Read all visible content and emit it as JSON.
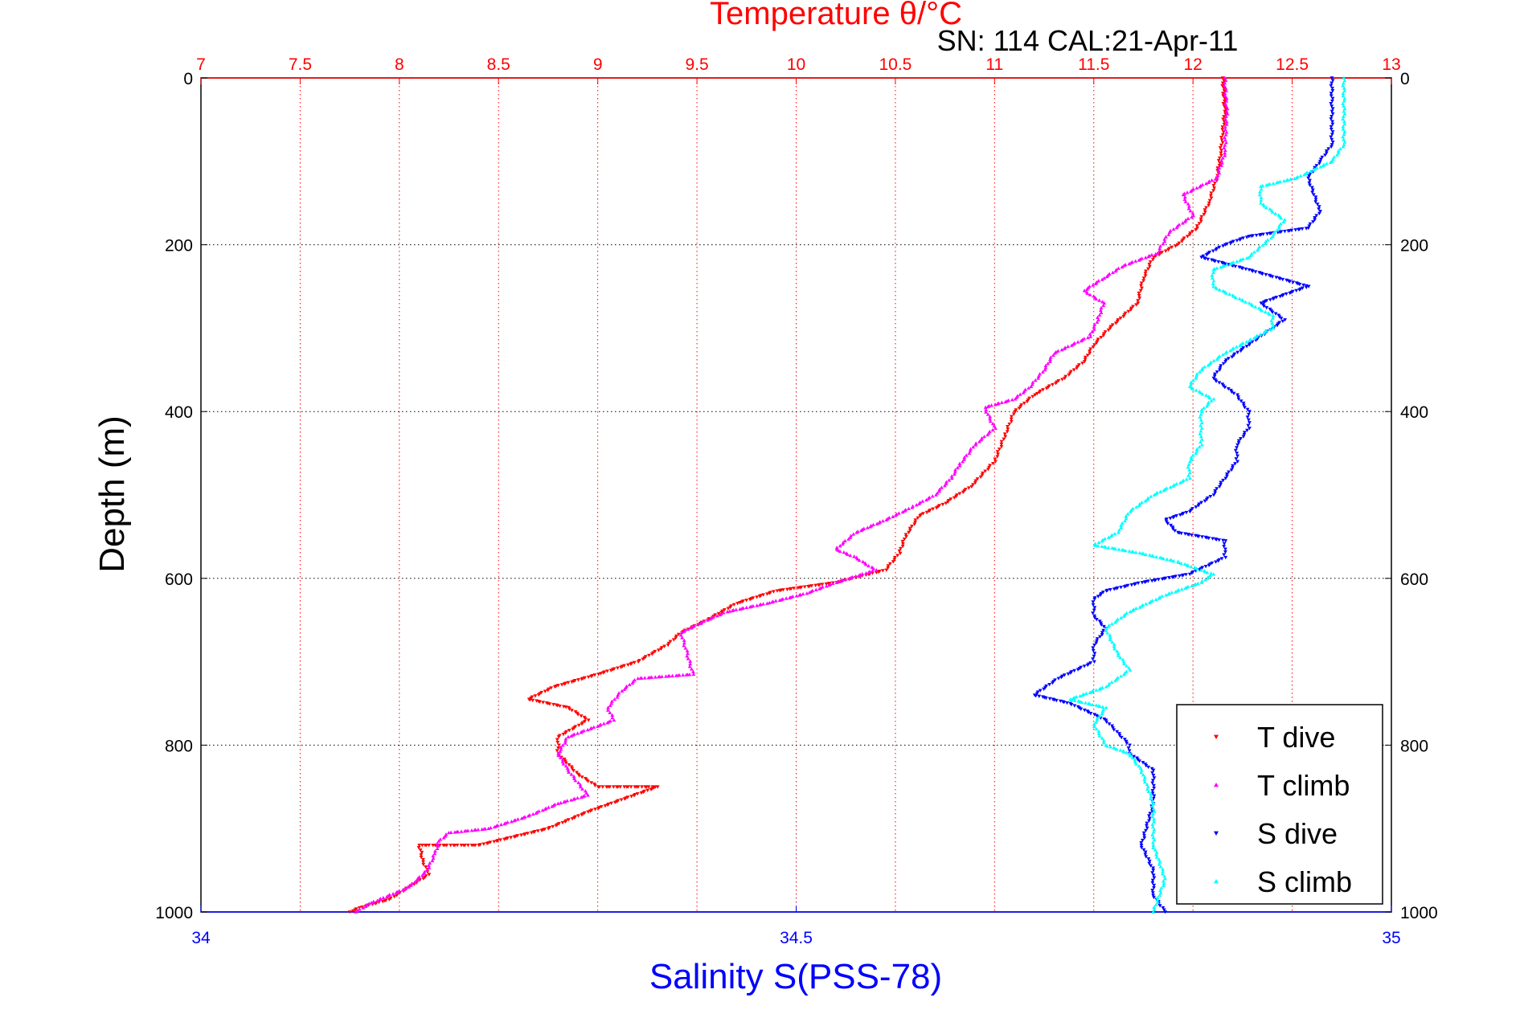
{
  "chart_data": {
    "type": "scatter",
    "title": "Temperature θ/°C",
    "subtitle": "SN: 114  CAL:21-Apr-11",
    "xlabel": "Salinity S(PSS-78)",
    "ylabel": "Depth (m)",
    "top_axis": {
      "ticks": [
        "7",
        "7.5",
        "8",
        "8.5",
        "9",
        "9.5",
        "10",
        "10.5",
        "11",
        "11.5",
        "12",
        "12.5",
        "13"
      ],
      "range": [
        7,
        13
      ],
      "color": "#ff0000"
    },
    "bottom_axis": {
      "ticks": [
        "34",
        "34.5",
        "35"
      ],
      "range": [
        34,
        35
      ],
      "color": "#0000ff"
    },
    "y_axis": {
      "ticks": [
        "0",
        "200",
        "400",
        "600",
        "800",
        "1000"
      ],
      "range": [
        0,
        1000
      ],
      "reversed": true
    },
    "grid": true,
    "legend_position": "bottom-right",
    "series": [
      {
        "name": "T dive",
        "axis": "top",
        "color": "#ff0000",
        "marker": "triangle-down",
        "points": [
          [
            12.15,
            0
          ],
          [
            12.16,
            40
          ],
          [
            12.14,
            90
          ],
          [
            12.12,
            120
          ],
          [
            12.08,
            150
          ],
          [
            12.02,
            180
          ],
          [
            11.92,
            200
          ],
          [
            11.8,
            215
          ],
          [
            11.75,
            240
          ],
          [
            11.72,
            270
          ],
          [
            11.58,
            300
          ],
          [
            11.5,
            320
          ],
          [
            11.45,
            340
          ],
          [
            11.35,
            360
          ],
          [
            11.2,
            380
          ],
          [
            11.1,
            400
          ],
          [
            11.05,
            430
          ],
          [
            11.0,
            460
          ],
          [
            10.88,
            490
          ],
          [
            10.75,
            510
          ],
          [
            10.62,
            525
          ],
          [
            10.55,
            550
          ],
          [
            10.52,
            570
          ],
          [
            10.45,
            590
          ],
          [
            10.2,
            605
          ],
          [
            9.9,
            615
          ],
          [
            9.7,
            630
          ],
          [
            9.55,
            650
          ],
          [
            9.42,
            665
          ],
          [
            9.35,
            680
          ],
          [
            9.2,
            700
          ],
          [
            9.0,
            715
          ],
          [
            8.78,
            730
          ],
          [
            8.65,
            745
          ],
          [
            8.85,
            755
          ],
          [
            8.95,
            770
          ],
          [
            8.8,
            790
          ],
          [
            8.8,
            810
          ],
          [
            8.9,
            835
          ],
          [
            9.0,
            850
          ],
          [
            9.3,
            850
          ],
          [
            8.95,
            880
          ],
          [
            8.75,
            900
          ],
          [
            8.4,
            920
          ],
          [
            8.1,
            920
          ],
          [
            8.12,
            940
          ],
          [
            8.15,
            955
          ],
          [
            8.05,
            970
          ],
          [
            7.95,
            985
          ],
          [
            7.8,
            995
          ],
          [
            7.75,
            1000
          ]
        ]
      },
      {
        "name": "T climb",
        "axis": "top",
        "color": "#ff00ff",
        "marker": "triangle-up",
        "points": [
          [
            12.16,
            0
          ],
          [
            12.17,
            40
          ],
          [
            12.16,
            90
          ],
          [
            12.12,
            120
          ],
          [
            11.95,
            140
          ],
          [
            12.0,
            165
          ],
          [
            11.88,
            185
          ],
          [
            11.82,
            210
          ],
          [
            11.65,
            225
          ],
          [
            11.55,
            240
          ],
          [
            11.45,
            255
          ],
          [
            11.55,
            270
          ],
          [
            11.52,
            290
          ],
          [
            11.48,
            310
          ],
          [
            11.3,
            330
          ],
          [
            11.25,
            350
          ],
          [
            11.18,
            370
          ],
          [
            11.1,
            385
          ],
          [
            10.95,
            395
          ],
          [
            11.0,
            420
          ],
          [
            10.9,
            440
          ],
          [
            10.82,
            465
          ],
          [
            10.78,
            480
          ],
          [
            10.7,
            500
          ],
          [
            10.58,
            515
          ],
          [
            10.45,
            530
          ],
          [
            10.3,
            545
          ],
          [
            10.2,
            565
          ],
          [
            10.3,
            575
          ],
          [
            10.4,
            590
          ],
          [
            10.2,
            605
          ],
          [
            10.05,
            618
          ],
          [
            9.85,
            630
          ],
          [
            9.65,
            640
          ],
          [
            9.55,
            650
          ],
          [
            9.42,
            665
          ],
          [
            9.45,
            690
          ],
          [
            9.48,
            715
          ],
          [
            9.2,
            720
          ],
          [
            9.12,
            735
          ],
          [
            9.05,
            755
          ],
          [
            9.08,
            770
          ],
          [
            8.85,
            790
          ],
          [
            8.8,
            810
          ],
          [
            8.85,
            830
          ],
          [
            8.95,
            860
          ],
          [
            8.8,
            870
          ],
          [
            8.65,
            885
          ],
          [
            8.45,
            900
          ],
          [
            8.25,
            905
          ],
          [
            8.2,
            915
          ],
          [
            8.18,
            930
          ],
          [
            8.14,
            950
          ],
          [
            8.05,
            970
          ],
          [
            7.85,
            990
          ],
          [
            7.78,
            1000
          ]
        ]
      },
      {
        "name": "S dive",
        "axis": "bottom",
        "color": "#0000ff",
        "marker": "triangle-down",
        "points": [
          [
            34.95,
            0
          ],
          [
            34.95,
            40
          ],
          [
            34.95,
            80
          ],
          [
            34.94,
            100
          ],
          [
            34.93,
            120
          ],
          [
            34.94,
            160
          ],
          [
            34.93,
            180
          ],
          [
            34.88,
            190
          ],
          [
            34.86,
            200
          ],
          [
            34.84,
            215
          ],
          [
            34.88,
            230
          ],
          [
            34.93,
            250
          ],
          [
            34.89,
            270
          ],
          [
            34.91,
            290
          ],
          [
            34.9,
            300
          ],
          [
            34.88,
            320
          ],
          [
            34.86,
            340
          ],
          [
            34.85,
            360
          ],
          [
            34.87,
            380
          ],
          [
            34.88,
            400
          ],
          [
            34.88,
            420
          ],
          [
            34.87,
            440
          ],
          [
            34.87,
            460
          ],
          [
            34.86,
            480
          ],
          [
            34.85,
            500
          ],
          [
            34.83,
            520
          ],
          [
            34.81,
            530
          ],
          [
            34.82,
            545
          ],
          [
            34.86,
            555
          ],
          [
            34.86,
            575
          ],
          [
            34.83,
            595
          ],
          [
            34.79,
            605
          ],
          [
            34.76,
            615
          ],
          [
            34.75,
            625
          ],
          [
            34.75,
            645
          ],
          [
            34.76,
            660
          ],
          [
            34.75,
            680
          ],
          [
            34.75,
            700
          ],
          [
            34.72,
            720
          ],
          [
            34.7,
            740
          ],
          [
            34.73,
            750
          ],
          [
            34.76,
            770
          ],
          [
            34.78,
            800
          ],
          [
            34.78,
            810
          ],
          [
            34.8,
            830
          ],
          [
            34.8,
            870
          ],
          [
            34.79,
            920
          ],
          [
            34.8,
            950
          ],
          [
            34.8,
            980
          ],
          [
            34.81,
            1000
          ]
        ]
      },
      {
        "name": "S climb",
        "axis": "bottom",
        "color": "#00ffff",
        "marker": "triangle-up",
        "points": [
          [
            34.96,
            0
          ],
          [
            34.96,
            40
          ],
          [
            34.96,
            80
          ],
          [
            34.95,
            100
          ],
          [
            34.92,
            120
          ],
          [
            34.89,
            130
          ],
          [
            34.89,
            150
          ],
          [
            34.91,
            170
          ],
          [
            34.9,
            190
          ],
          [
            34.88,
            215
          ],
          [
            34.85,
            230
          ],
          [
            34.85,
            250
          ],
          [
            34.88,
            270
          ],
          [
            34.9,
            285
          ],
          [
            34.9,
            300
          ],
          [
            34.88,
            315
          ],
          [
            34.86,
            330
          ],
          [
            34.84,
            350
          ],
          [
            34.83,
            370
          ],
          [
            34.85,
            385
          ],
          [
            34.84,
            400
          ],
          [
            34.84,
            420
          ],
          [
            34.84,
            440
          ],
          [
            34.83,
            460
          ],
          [
            34.83,
            480
          ],
          [
            34.8,
            500
          ],
          [
            34.78,
            520
          ],
          [
            34.77,
            545
          ],
          [
            34.75,
            560
          ],
          [
            34.79,
            570
          ],
          [
            34.82,
            580
          ],
          [
            34.85,
            595
          ],
          [
            34.84,
            605
          ],
          [
            34.81,
            620
          ],
          [
            34.78,
            640
          ],
          [
            34.76,
            660
          ],
          [
            34.77,
            690
          ],
          [
            34.78,
            710
          ],
          [
            34.76,
            730
          ],
          [
            34.73,
            745
          ],
          [
            34.76,
            755
          ],
          [
            34.75,
            775
          ],
          [
            34.76,
            800
          ],
          [
            34.78,
            810
          ],
          [
            34.79,
            830
          ],
          [
            34.8,
            870
          ],
          [
            34.8,
            920
          ],
          [
            34.81,
            960
          ],
          [
            34.8,
            1000
          ]
        ]
      }
    ]
  }
}
